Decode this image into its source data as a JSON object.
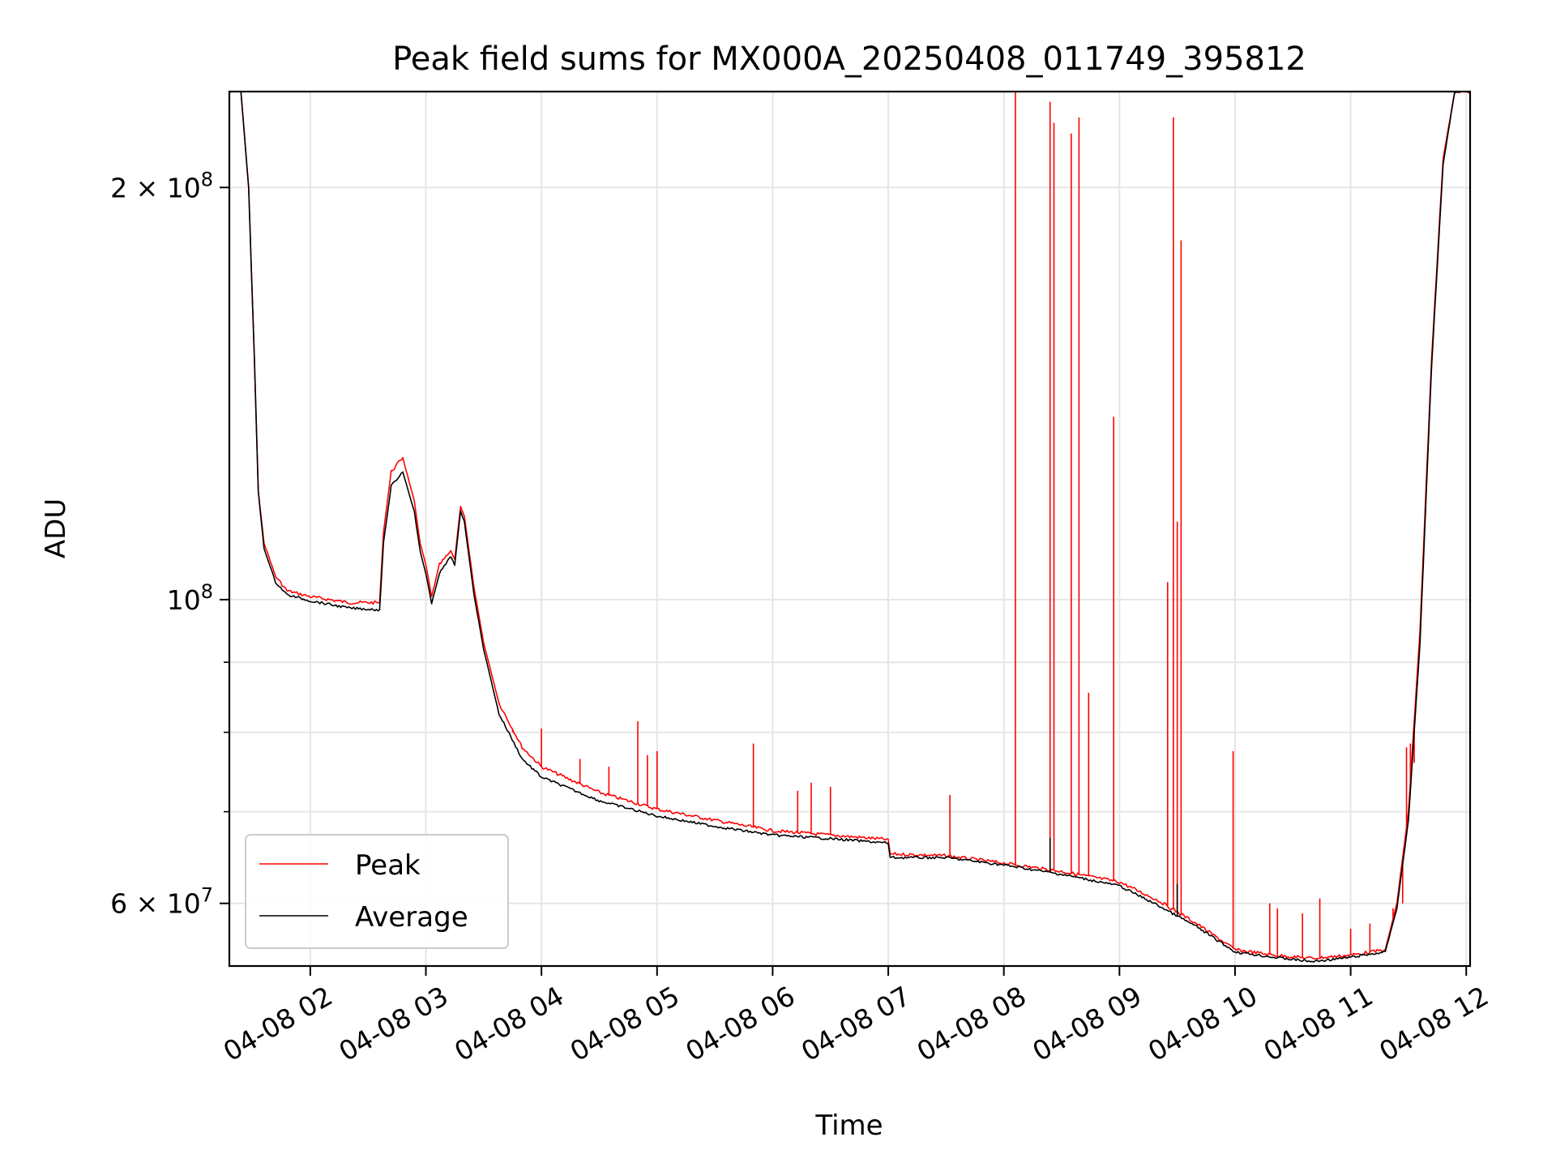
{
  "chart_data": {
    "type": "line",
    "title": "Peak field sums for MX000A_20250408_011749_395812",
    "xlabel": "Time",
    "ylabel": "ADU",
    "y_scale": "log",
    "ylim": [
      54000000,
      235000000
    ],
    "xlim": [
      "2025-04-08 01:18",
      "2025-04-08 12:02"
    ],
    "grid": true,
    "legend": "lower-left",
    "x_ticks": [
      {
        "t": "2025-04-08 02:00",
        "label": "04-08 02"
      },
      {
        "t": "2025-04-08 03:00",
        "label": "04-08 03"
      },
      {
        "t": "2025-04-08 04:00",
        "label": "04-08 04"
      },
      {
        "t": "2025-04-08 05:00",
        "label": "04-08 05"
      },
      {
        "t": "2025-04-08 06:00",
        "label": "04-08 06"
      },
      {
        "t": "2025-04-08 07:00",
        "label": "04-08 07"
      },
      {
        "t": "2025-04-08 08:00",
        "label": "04-08 08"
      },
      {
        "t": "2025-04-08 09:00",
        "label": "04-08 09"
      },
      {
        "t": "2025-04-08 10:00",
        "label": "04-08 10"
      },
      {
        "t": "2025-04-08 11:00",
        "label": "04-08 11"
      },
      {
        "t": "2025-04-08 12:00",
        "label": "04-08 12"
      }
    ],
    "y_ticks_major": [
      {
        "v": 60000000,
        "mant": "6",
        "exp": "7"
      },
      {
        "v": 100000000,
        "mant": "",
        "exp": "8"
      },
      {
        "v": 200000000,
        "mant": "2",
        "exp": "8"
      }
    ],
    "y_ticks_minor": [
      70000000,
      80000000,
      90000000
    ],
    "series": [
      {
        "name": "Peak",
        "color": "#ff0000",
        "points": [
          [
            "2025-04-08 01:18",
            235000000
          ],
          [
            "2025-04-08 01:24",
            235000000
          ],
          [
            "2025-04-08 01:28",
            200000000
          ],
          [
            "2025-04-08 01:31",
            150000000
          ],
          [
            "2025-04-08 01:33",
            120000000
          ],
          [
            "2025-04-08 01:36",
            110000000
          ],
          [
            "2025-04-08 01:42",
            104000000
          ],
          [
            "2025-04-08 01:48",
            101500000
          ],
          [
            "2025-04-08 02:00",
            100500000
          ],
          [
            "2025-04-08 02:20",
            99500000
          ],
          [
            "2025-04-08 02:36",
            99500000
          ],
          [
            "2025-04-08 02:38",
            112000000
          ],
          [
            "2025-04-08 02:42",
            124000000
          ],
          [
            "2025-04-08 02:48",
            127000000
          ],
          [
            "2025-04-08 02:54",
            118000000
          ],
          [
            "2025-04-08 02:57",
            110000000
          ],
          [
            "2025-04-08 03:00",
            106000000
          ],
          [
            "2025-04-08 03:03",
            100500000
          ],
          [
            "2025-04-08 03:07",
            106000000
          ],
          [
            "2025-04-08 03:13",
            108500000
          ],
          [
            "2025-04-08 03:15",
            107000000
          ],
          [
            "2025-04-08 03:18",
            117000000
          ],
          [
            "2025-04-08 03:20",
            115000000
          ],
          [
            "2025-04-08 03:25",
            102000000
          ],
          [
            "2025-04-08 03:30",
            93000000
          ],
          [
            "2025-04-08 03:38",
            84000000
          ],
          [
            "2025-04-08 03:50",
            78000000
          ],
          [
            "2025-04-08 04:00",
            75500000
          ],
          [
            "2025-04-08 04:30",
            72300000
          ],
          [
            "2025-04-08 05:00",
            70300000
          ],
          [
            "2025-04-08 05:30",
            69000000
          ],
          [
            "2025-04-08 06:00",
            67800000
          ],
          [
            "2025-04-08 06:30",
            67300000
          ],
          [
            "2025-04-08 07:00",
            66800000
          ],
          [
            "2025-04-08 07:01",
            65200000
          ],
          [
            "2025-04-08 07:30",
            65000000
          ],
          [
            "2025-04-08 08:00",
            64200000
          ],
          [
            "2025-04-08 08:30",
            63300000
          ],
          [
            "2025-04-08 09:00",
            62200000
          ],
          [
            "2025-04-08 09:20",
            60300000
          ],
          [
            "2025-04-08 09:40",
            58000000
          ],
          [
            "2025-04-08 10:00",
            55500000
          ],
          [
            "2025-04-08 10:20",
            55000000
          ],
          [
            "2025-04-08 10:40",
            54700000
          ],
          [
            "2025-04-08 11:00",
            55000000
          ],
          [
            "2025-04-08 11:18",
            55500000
          ],
          [
            "2025-04-08 11:24",
            60000000
          ],
          [
            "2025-04-08 11:30",
            70000000
          ],
          [
            "2025-04-08 11:36",
            95000000
          ],
          [
            "2025-04-08 11:42",
            150000000
          ],
          [
            "2025-04-08 11:48",
            210000000
          ],
          [
            "2025-04-08 11:54",
            235000000
          ],
          [
            "2025-04-08 12:02",
            235000000
          ]
        ],
        "spikes": [
          [
            "2025-04-08 03:45",
            80000000
          ],
          [
            "2025-04-08 04:00",
            80500000
          ],
          [
            "2025-04-08 04:20",
            76500000
          ],
          [
            "2025-04-08 04:35",
            75500000
          ],
          [
            "2025-04-08 04:50",
            81500000
          ],
          [
            "2025-04-08 04:55",
            77000000
          ],
          [
            "2025-04-08 05:00",
            77500000
          ],
          [
            "2025-04-08 05:50",
            78500000
          ],
          [
            "2025-04-08 06:13",
            72500000
          ],
          [
            "2025-04-08 06:20",
            73500000
          ],
          [
            "2025-04-08 06:30",
            73000000
          ],
          [
            "2025-04-08 07:32",
            72000000
          ],
          [
            "2025-04-08 08:06",
            235000000
          ],
          [
            "2025-04-08 08:24",
            231000000
          ],
          [
            "2025-04-08 08:26",
            223000000
          ],
          [
            "2025-04-08 08:35",
            219000000
          ],
          [
            "2025-04-08 08:39",
            225000000
          ],
          [
            "2025-04-08 08:44",
            85500000
          ],
          [
            "2025-04-08 08:57",
            136000000
          ],
          [
            "2025-04-08 09:25",
            103000000
          ],
          [
            "2025-04-08 09:28",
            225000000
          ],
          [
            "2025-04-08 09:30",
            114000000
          ],
          [
            "2025-04-08 09:32",
            183000000
          ],
          [
            "2025-04-08 09:59",
            77500000
          ],
          [
            "2025-04-08 10:18",
            60000000
          ],
          [
            "2025-04-08 10:22",
            59500000
          ],
          [
            "2025-04-08 10:35",
            59000000
          ],
          [
            "2025-04-08 10:44",
            60500000
          ],
          [
            "2025-04-08 11:00",
            57500000
          ],
          [
            "2025-04-08 11:10",
            58000000
          ],
          [
            "2025-04-08 11:22",
            59500000
          ],
          [
            "2025-04-08 11:27",
            60000000
          ],
          [
            "2025-04-08 11:29",
            78000000
          ],
          [
            "2025-04-08 11:31",
            78500000
          ],
          [
            "2025-04-08 11:33",
            76000000
          ]
        ]
      },
      {
        "name": "Average",
        "color": "#000000",
        "points": [
          [
            "2025-04-08 01:18",
            235000000
          ],
          [
            "2025-04-08 01:24",
            235000000
          ],
          [
            "2025-04-08 01:28",
            200000000
          ],
          [
            "2025-04-08 01:31",
            150000000
          ],
          [
            "2025-04-08 01:33",
            120000000
          ],
          [
            "2025-04-08 01:36",
            109000000
          ],
          [
            "2025-04-08 01:42",
            103000000
          ],
          [
            "2025-04-08 01:48",
            100800000
          ],
          [
            "2025-04-08 02:00",
            99800000
          ],
          [
            "2025-04-08 02:20",
            98600000
          ],
          [
            "2025-04-08 02:36",
            98300000
          ],
          [
            "2025-04-08 02:38",
            110000000
          ],
          [
            "2025-04-08 02:42",
            121000000
          ],
          [
            "2025-04-08 02:48",
            124000000
          ],
          [
            "2025-04-08 02:54",
            116000000
          ],
          [
            "2025-04-08 02:57",
            108500000
          ],
          [
            "2025-04-08 03:00",
            104500000
          ],
          [
            "2025-04-08 03:03",
            99300000
          ],
          [
            "2025-04-08 03:07",
            104500000
          ],
          [
            "2025-04-08 03:13",
            107500000
          ],
          [
            "2025-04-08 03:15",
            106000000
          ],
          [
            "2025-04-08 03:18",
            116000000
          ],
          [
            "2025-04-08 03:20",
            114000000
          ],
          [
            "2025-04-08 03:25",
            100800000
          ],
          [
            "2025-04-08 03:30",
            92000000
          ],
          [
            "2025-04-08 03:38",
            82500000
          ],
          [
            "2025-04-08 03:50",
            76500000
          ],
          [
            "2025-04-08 04:00",
            74200000
          ],
          [
            "2025-04-08 04:30",
            71300000
          ],
          [
            "2025-04-08 05:00",
            69500000
          ],
          [
            "2025-04-08 05:30",
            68300000
          ],
          [
            "2025-04-08 06:00",
            67300000
          ],
          [
            "2025-04-08 06:30",
            66900000
          ],
          [
            "2025-04-08 07:00",
            66400000
          ],
          [
            "2025-04-08 07:01",
            64800000
          ],
          [
            "2025-04-08 07:30",
            64800000
          ],
          [
            "2025-04-08 08:00",
            64000000
          ],
          [
            "2025-04-08 08:30",
            63000000
          ],
          [
            "2025-04-08 09:00",
            61800000
          ],
          [
            "2025-04-08 09:20",
            59800000
          ],
          [
            "2025-04-08 09:40",
            57700000
          ],
          [
            "2025-04-08 10:00",
            55300000
          ],
          [
            "2025-04-08 10:20",
            54800000
          ],
          [
            "2025-04-08 10:40",
            54400000
          ],
          [
            "2025-04-08 11:00",
            54800000
          ],
          [
            "2025-04-08 11:18",
            55300000
          ],
          [
            "2025-04-08 11:24",
            59500000
          ],
          [
            "2025-04-08 11:30",
            69000000
          ],
          [
            "2025-04-08 11:36",
            93000000
          ],
          [
            "2025-04-08 11:42",
            148000000
          ],
          [
            "2025-04-08 11:48",
            208000000
          ],
          [
            "2025-04-08 11:54",
            235000000
          ],
          [
            "2025-04-08 12:02",
            235000000
          ]
        ],
        "spikes": [
          [
            "2025-04-08 08:24",
            67000000
          ],
          [
            "2025-04-08 09:30",
            62000000
          ]
        ]
      }
    ]
  }
}
